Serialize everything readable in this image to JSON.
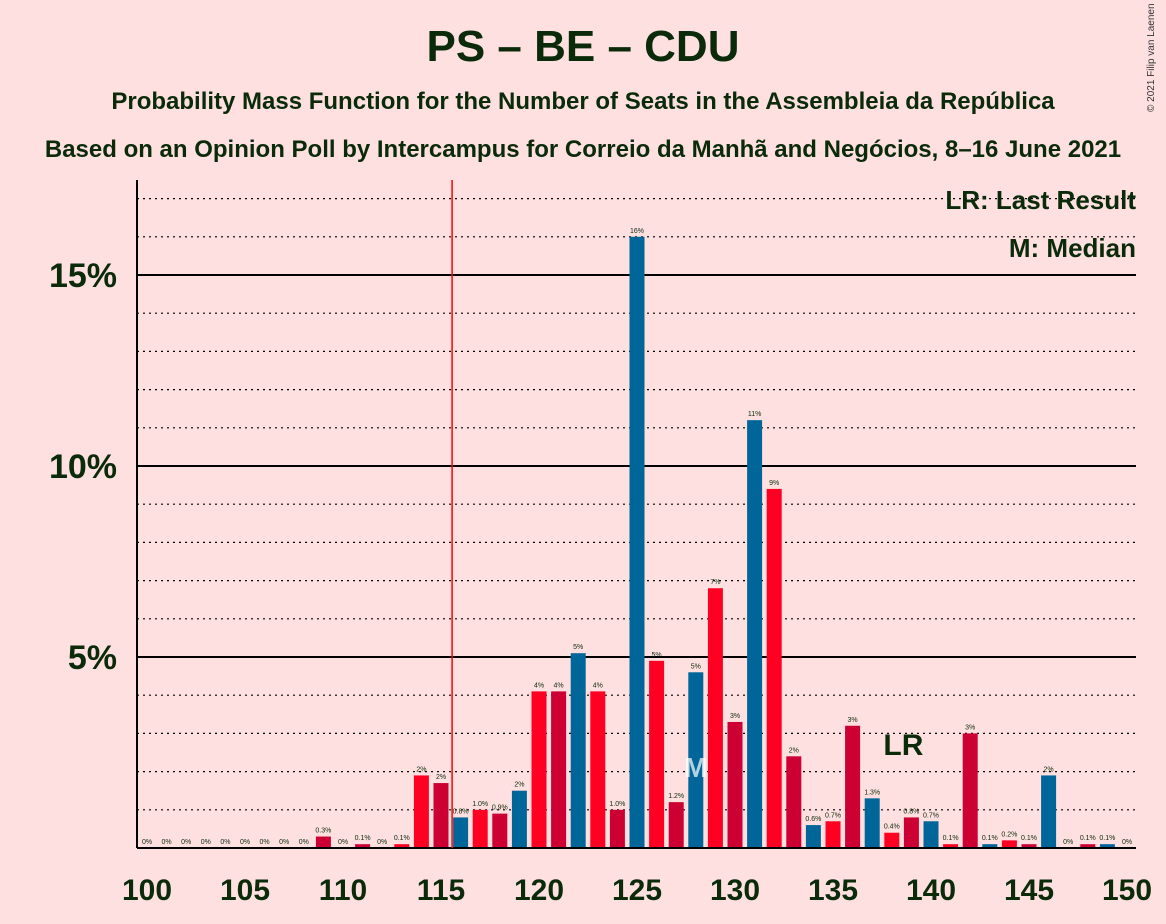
{
  "title": "PS – BE – CDU",
  "subtitle": "Probability Mass Function for the Number of Seats in the Assembleia da República",
  "subtitle2": "Based on an Opinion Poll by Intercampus for Correio da Manhã and Negócios, 8–16 June 2021",
  "credit": "© 2021 Filip van Laenen",
  "legend": {
    "lr": "LR: Last Result",
    "median": "M: Median"
  },
  "colors": {
    "red": "#ff0022",
    "crimson": "#cc0033",
    "blue": "#006699",
    "majority_line": "#ff0000",
    "text": "#0a2a0a"
  },
  "chart_data": {
    "type": "bar",
    "x": [
      100,
      101,
      102,
      103,
      104,
      105,
      106,
      107,
      108,
      109,
      110,
      111,
      112,
      113,
      114,
      115,
      116,
      117,
      118,
      119,
      120,
      121,
      122,
      123,
      124,
      125,
      126,
      127,
      128,
      129,
      130,
      131,
      132,
      133,
      134,
      135,
      136,
      137,
      138,
      139,
      140,
      141,
      142,
      143,
      144,
      145,
      146,
      147,
      148,
      149,
      150
    ],
    "values": [
      0,
      0,
      0,
      0,
      0,
      0,
      0,
      0,
      0,
      0.3,
      0,
      0.1,
      0,
      0.1,
      1.9,
      1.7,
      0.8,
      1.0,
      0.9,
      1.5,
      4.1,
      4.1,
      5.1,
      4.1,
      1.0,
      16.0,
      4.9,
      1.2,
      4.6,
      6.8,
      3.3,
      11.2,
      9.4,
      2.4,
      0.6,
      0.7,
      3.2,
      1.3,
      0.4,
      0.8,
      0.7,
      0.1,
      3.0,
      0.1,
      0.2,
      0.1,
      1.9,
      0,
      0.1,
      0.1,
      0
    ],
    "labels": [
      "0%",
      "0%",
      "0%",
      "0%",
      "0%",
      "0%",
      "0%",
      "0%",
      "0%",
      "0.3%",
      "0%",
      "0.1%",
      "0%",
      "0.1%",
      "2%",
      "2%",
      "0.8%",
      "1.0%",
      "0.9%",
      "2%",
      "4%",
      "4%",
      "5%",
      "4%",
      "1.0%",
      "16%",
      "5%",
      "1.2%",
      "5%",
      "7%",
      "3%",
      "11%",
      "9%",
      "2%",
      "0.6%",
      "0.7%",
      "3%",
      "1.3%",
      "0.4%",
      "0.8%",
      "0.7%",
      "0.1%",
      "3%",
      "0.1%",
      "0.2%",
      "0.1%",
      "2%",
      "0%",
      "0.1%",
      "0.1%",
      "0%"
    ],
    "colors": [
      "blue",
      "red",
      "crimson",
      "blue",
      "red",
      "crimson",
      "blue",
      "red",
      "crimson",
      "crimson",
      "blue",
      "crimson",
      "blue",
      "red",
      "red",
      "crimson",
      "blue",
      "red",
      "crimson",
      "blue",
      "red",
      "crimson",
      "blue",
      "red",
      "crimson",
      "blue",
      "red",
      "crimson",
      "blue",
      "red",
      "crimson",
      "blue",
      "red",
      "crimson",
      "blue",
      "red",
      "crimson",
      "blue",
      "red",
      "crimson",
      "blue",
      "red",
      "crimson",
      "blue",
      "red",
      "crimson",
      "blue",
      "red",
      "crimson",
      "blue",
      "red"
    ],
    "x_ticks": [
      100,
      105,
      110,
      115,
      120,
      125,
      130,
      135,
      140,
      145,
      150
    ],
    "y_ticks": [
      {
        "v": 5,
        "label": "5%"
      },
      {
        "v": 10,
        "label": "10%"
      },
      {
        "v": 15,
        "label": "15%"
      }
    ],
    "ylim": [
      0,
      17.5
    ],
    "majority_line": 116,
    "median": 128,
    "median_label": "M",
    "last_result": 139,
    "last_result_label": "LR",
    "grid": true
  }
}
